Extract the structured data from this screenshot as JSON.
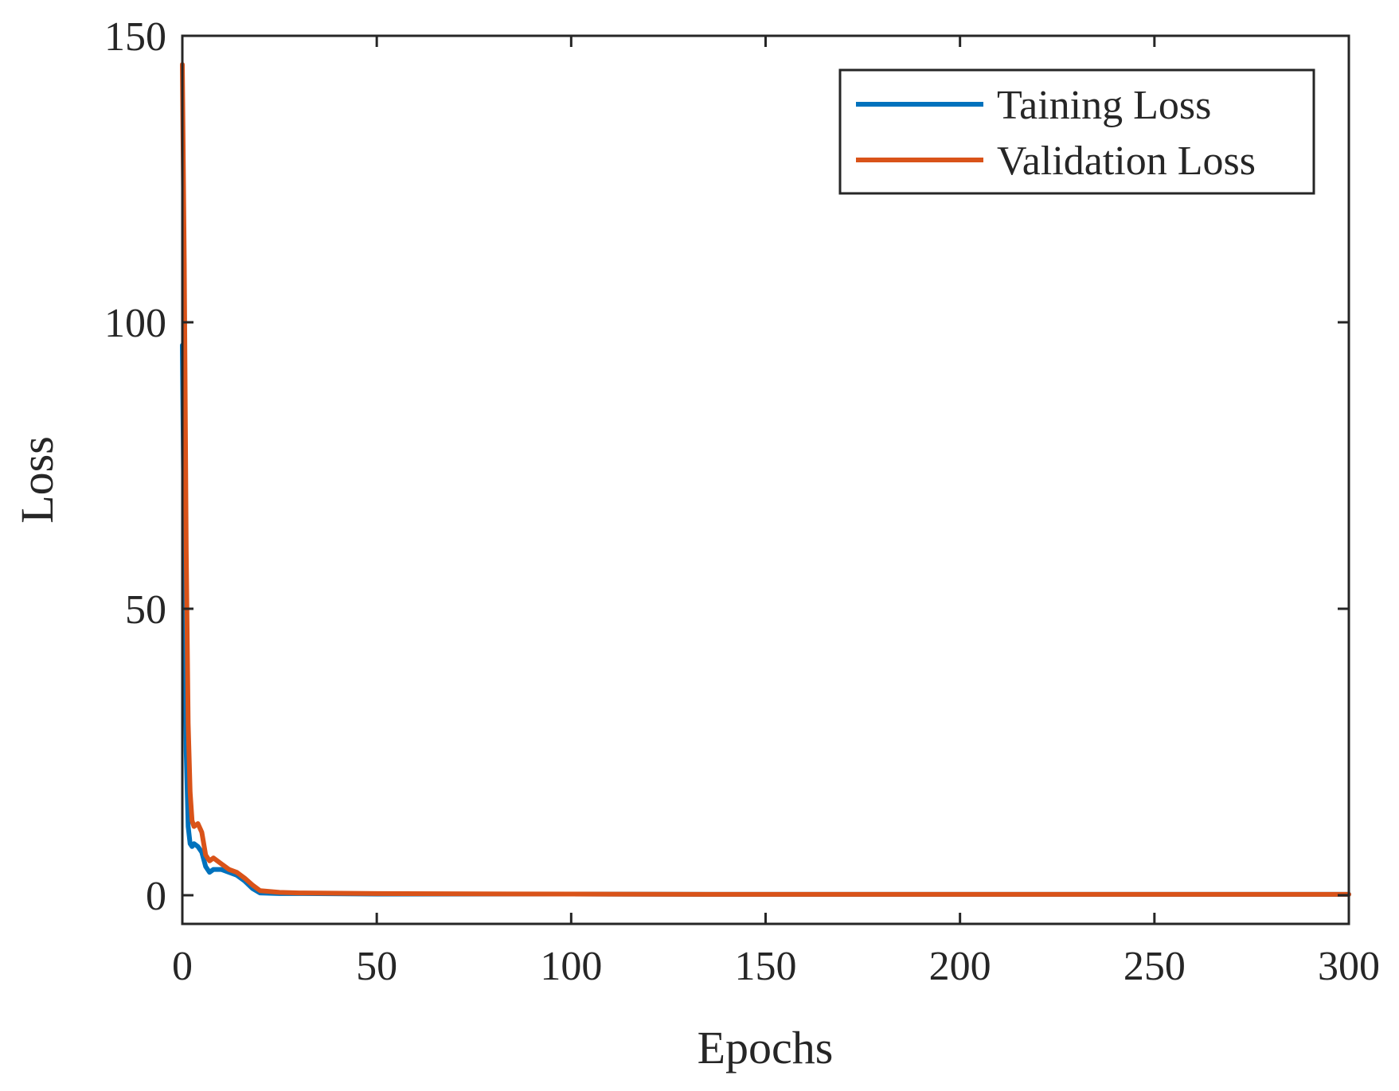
{
  "chart_data": {
    "type": "line",
    "title": "",
    "xlabel": "Epochs",
    "ylabel": "Loss",
    "xlim": [
      0,
      300
    ],
    "ylim": [
      -5,
      150
    ],
    "xticks": [
      0,
      50,
      100,
      150,
      200,
      250,
      300
    ],
    "xtick_labels": [
      "0",
      "50",
      "100",
      "150",
      "200",
      "250",
      "300"
    ],
    "yticks": [
      0,
      50,
      100,
      150
    ],
    "ytick_labels": [
      "0",
      "50",
      "100",
      "150"
    ],
    "grid": false,
    "legend_position": "top-right",
    "series": [
      {
        "name": "Taining Loss",
        "color": "#0072BD",
        "x": [
          0,
          0.5,
          1,
          1.5,
          2,
          2.5,
          3,
          4,
          5,
          6,
          7,
          8,
          10,
          12,
          14,
          16,
          18,
          20,
          25,
          30,
          50,
          100,
          150,
          200,
          250,
          300
        ],
        "y": [
          96,
          60,
          25,
          12,
          9,
          8.5,
          9,
          8.5,
          7.5,
          5,
          4,
          4.5,
          4.5,
          4,
          3.5,
          2.5,
          1.2,
          0.4,
          0.3,
          0.3,
          0.2,
          0.2,
          0.15,
          0.15,
          0.15,
          0.15
        ]
      },
      {
        "name": "Validation Loss",
        "color": "#D95319",
        "x": [
          0,
          0.5,
          1,
          1.5,
          2,
          2.5,
          3,
          4,
          5,
          6,
          7,
          8,
          10,
          12,
          14,
          16,
          18,
          20,
          25,
          30,
          50,
          100,
          150,
          200,
          250,
          300
        ],
        "y": [
          145,
          110,
          60,
          30,
          18,
          13,
          12,
          12.5,
          11,
          7,
          6,
          6.5,
          5.5,
          4.5,
          4,
          3,
          1.8,
          0.8,
          0.5,
          0.4,
          0.3,
          0.2,
          0.15,
          0.15,
          0.15,
          0.15
        ]
      }
    ]
  }
}
